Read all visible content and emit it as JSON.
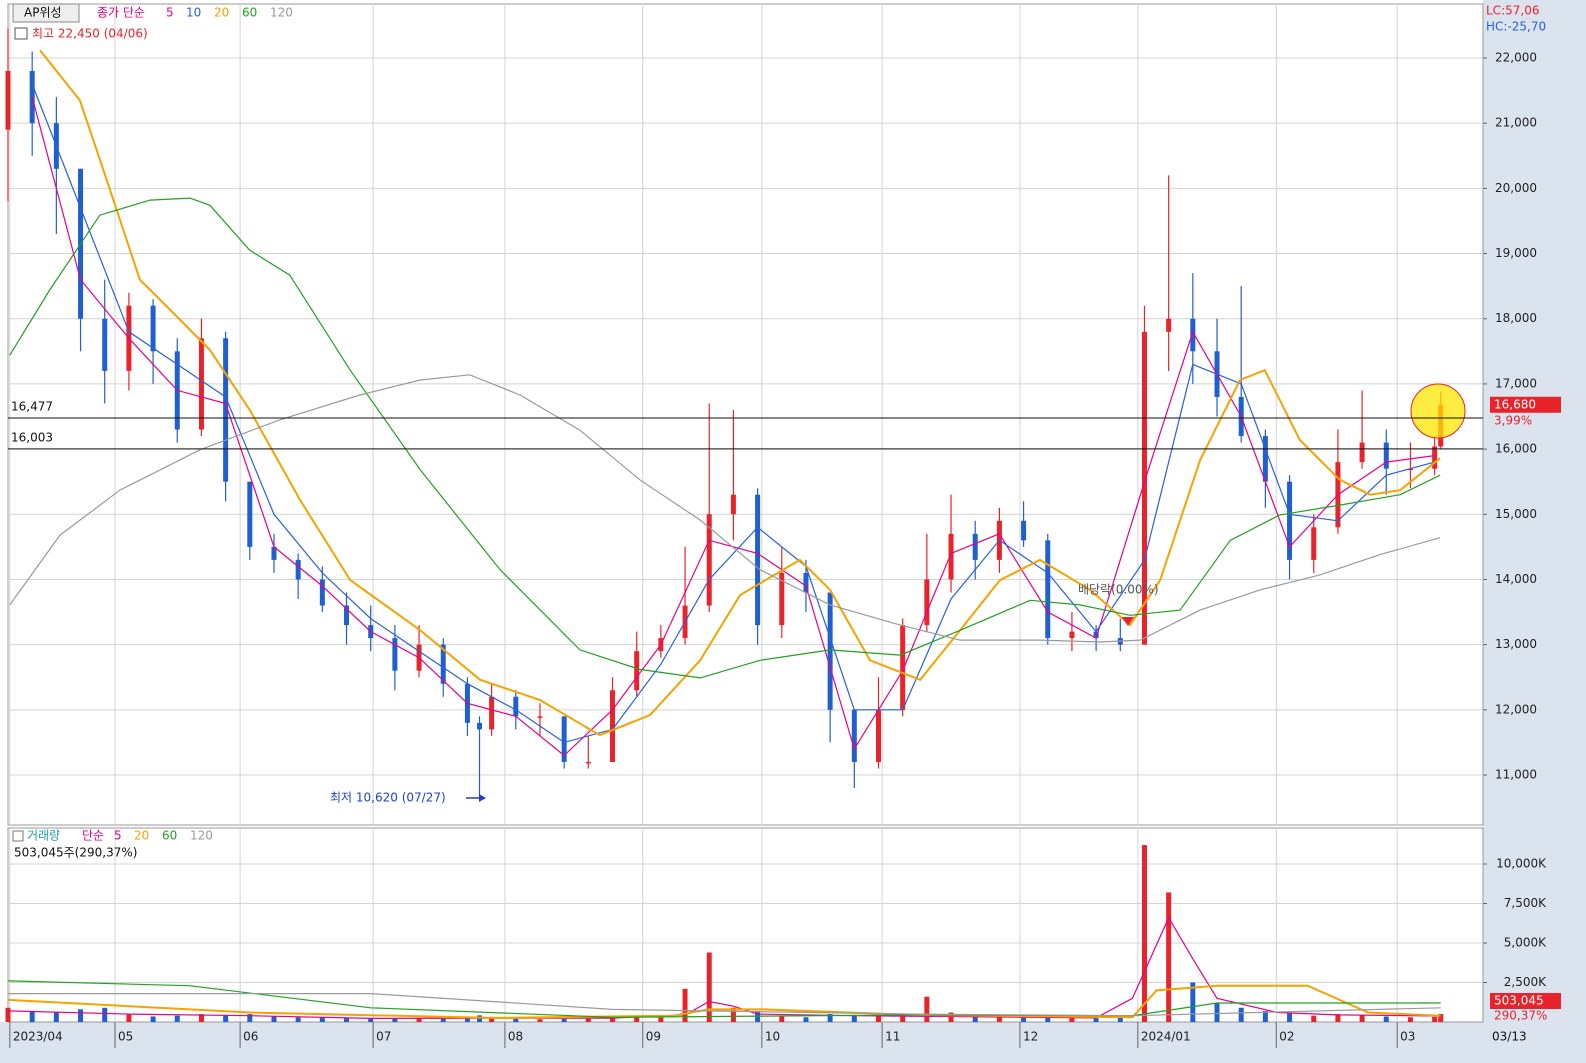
{
  "header": {
    "symbol": "AP위성",
    "lc": "LC:57,06",
    "hc": "HC:-25,70",
    "high_note": "최고 22,450 (04/06)",
    "low_note": "최저 10,620 (07/27)",
    "dividend_note": "배당락(0.00%)",
    "last_date": "03/13",
    "volume_info": "503,045주(290,37%)"
  },
  "chart_data": [
    {
      "type": "candlestick",
      "legend_label": "종가 단순",
      "up_color": "#e8242a",
      "down_color": "#1f5fd0",
      "grid": true,
      "xlim": [
        0,
        244
      ],
      "ylim": [
        10233,
        22767
      ],
      "xticks": [
        {
          "value": 0.3,
          "label": "2023/04"
        },
        {
          "value": 17.7,
          "label": "05"
        },
        {
          "value": 38.4,
          "label": "06"
        },
        {
          "value": 60.4,
          "label": "07"
        },
        {
          "value": 82.2,
          "label": "08"
        },
        {
          "value": 105,
          "label": "09"
        },
        {
          "value": 124.7,
          "label": "10"
        },
        {
          "value": 144.6,
          "label": "11"
        },
        {
          "value": 167.4,
          "label": "12"
        },
        {
          "value": 186.9,
          "label": "2024/01"
        },
        {
          "value": 209.8,
          "label": "02"
        },
        {
          "value": 229.8,
          "label": "03"
        }
      ],
      "yticks": [
        {
          "value": 11000,
          "label": "11,000"
        },
        {
          "value": 12000,
          "label": "12,000"
        },
        {
          "value": 13000,
          "label": "13,000"
        },
        {
          "value": 14000,
          "label": "14,000"
        },
        {
          "value": 15000,
          "label": "15,000"
        },
        {
          "value": 16000,
          "label": "16,000"
        },
        {
          "value": 17000,
          "label": "17,000"
        },
        {
          "value": 18000,
          "label": "18,000"
        },
        {
          "value": 19000,
          "label": "19,000"
        },
        {
          "value": 20000,
          "label": "20,000"
        },
        {
          "value": 21000,
          "label": "21,000"
        },
        {
          "value": 22000,
          "label": "22,000"
        }
      ],
      "hlines": [
        {
          "value": 16477,
          "label": "16,477"
        },
        {
          "value": 16003,
          "label": "16,003"
        }
      ],
      "last_price": {
        "value": 16680,
        "label": "16,680"
      },
      "change_label": "3,99%",
      "x": [
        0,
        4,
        8,
        12,
        16,
        20,
        24,
        28,
        32,
        36,
        40,
        44,
        48,
        52,
        56,
        60,
        64,
        68,
        72,
        76,
        78,
        80,
        84,
        88,
        92,
        96,
        100,
        104,
        108,
        112,
        116,
        120,
        124,
        128,
        132,
        136,
        140,
        144,
        148,
        152,
        156,
        160,
        164,
        168,
        172,
        176,
        180,
        184,
        188,
        192,
        196,
        200,
        204,
        208,
        212,
        216,
        220,
        224,
        228,
        232,
        236,
        237
      ],
      "open": [
        20900,
        21800,
        21000,
        20300,
        18000,
        17200,
        18200,
        17500,
        16300,
        17700,
        15500,
        14500,
        14300,
        14000,
        13600,
        13300,
        13100,
        12600,
        13000,
        12400,
        11800,
        11700,
        12200,
        11900,
        11900,
        11200,
        11200,
        12300,
        12900,
        13100,
        13600,
        15000,
        15300,
        13300,
        14100,
        13800,
        12000,
        11200,
        12000,
        13300,
        14000,
        14700,
        14300,
        14900,
        14600,
        13100,
        13200,
        13100,
        13000,
        17800,
        18000,
        17500,
        16800,
        16200,
        15500,
        14300,
        14800,
        15800,
        16100,
        15700,
        15700,
        16040
      ],
      "high": [
        22450,
        22100,
        21400,
        20300,
        18600,
        18400,
        18300,
        17700,
        18000,
        17800,
        15500,
        14700,
        14400,
        14200,
        13800,
        13600,
        13300,
        13300,
        13100,
        12500,
        11900,
        12400,
        12300,
        12100,
        11900,
        11600,
        12500,
        13200,
        13300,
        14500,
        16700,
        16600,
        15400,
        14500,
        14300,
        13800,
        12000,
        12500,
        13400,
        14700,
        15300,
        14900,
        15100,
        15200,
        14700,
        13500,
        13300,
        13400,
        18200,
        20200,
        18700,
        18000,
        18500,
        16300,
        15600,
        15000,
        16300,
        16900,
        16300,
        16100,
        16200,
        16880
      ],
      "low": [
        19800,
        20500,
        19300,
        17500,
        16700,
        16900,
        17000,
        16100,
        16200,
        15200,
        14300,
        14100,
        13700,
        13500,
        13000,
        12900,
        12300,
        12500,
        12200,
        11600,
        10620,
        11600,
        11700,
        11600,
        11100,
        11100,
        11200,
        12200,
        12800,
        13000,
        13500,
        14600,
        13000,
        13100,
        13500,
        11500,
        10800,
        11100,
        11900,
        13200,
        13800,
        14000,
        14100,
        14500,
        13000,
        12900,
        12900,
        12900,
        13000,
        17200,
        17000,
        16500,
        16100,
        15100,
        14000,
        14100,
        14700,
        15700,
        15300,
        15400,
        15600,
        16000
      ],
      "close": [
        21800,
        21000,
        20300,
        18000,
        17200,
        18200,
        17500,
        16300,
        17700,
        15500,
        14500,
        14300,
        14000,
        13600,
        13300,
        13100,
        12600,
        13000,
        12400,
        11800,
        11700,
        12200,
        11900,
        11900,
        11200,
        11200,
        12300,
        12900,
        13100,
        13600,
        15000,
        15300,
        13300,
        14100,
        13800,
        12000,
        11200,
        12000,
        13300,
        14000,
        14700,
        14300,
        14900,
        14600,
        13100,
        13200,
        13100,
        13000,
        17800,
        18000,
        17500,
        16800,
        16200,
        15500,
        14300,
        14800,
        15800,
        16100,
        15700,
        15700,
        16040,
        16680
      ],
      "series": [
        {
          "name": "5",
          "color": "#e6008a",
          "x": [
            4,
            12,
            20,
            28,
            36,
            44,
            52,
            60,
            68,
            76,
            84,
            92,
            100,
            108,
            116,
            124,
            132,
            140,
            148,
            156,
            164,
            172,
            180,
            188,
            196,
            204,
            212,
            220,
            228,
            236
          ],
          "values": [
            21400,
            18600,
            17700,
            16900,
            16700,
            14500,
            13900,
            13200,
            12800,
            12100,
            11900,
            11300,
            12000,
            13000,
            14600,
            14400,
            13900,
            11400,
            12600,
            14400,
            14700,
            13500,
            13100,
            15500,
            17800,
            16500,
            14500,
            15300,
            15800,
            15900
          ]
        },
        {
          "name": "10",
          "color": "#2a5fe0",
          "x": [
            4,
            12,
            20,
            28,
            36,
            44,
            52,
            60,
            68,
            76,
            84,
            92,
            100,
            108,
            116,
            124,
            132,
            140,
            148,
            156,
            164,
            172,
            180,
            188,
            196,
            204,
            212,
            220,
            228,
            236
          ],
          "values": [
            21600,
            19700,
            17800,
            17300,
            16800,
            15000,
            14100,
            13400,
            12900,
            12400,
            12000,
            11500,
            11700,
            12700,
            14000,
            14800,
            14200,
            12000,
            12000,
            13700,
            14600,
            14100,
            13200,
            14300,
            17300,
            17000,
            15000,
            14900,
            15600,
            15800
          ]
        },
        {
          "name": "20",
          "color": "#f5a300",
          "x": [
            5.3,
            11.9,
            16.9,
            21.8,
            28.5,
            33.4,
            40,
            48.3,
            56.6,
            68.2,
            78.1,
            88,
            97.9,
            106.2,
            114.5,
            121.1,
            131,
            136,
            142.6,
            150.9,
            157.5,
            164.1,
            170.7,
            179,
            185.6,
            190.6,
            197.2,
            203.8,
            207.9,
            213.7,
            220.3,
            225.3,
            230.3,
            236.9
          ],
          "values": [
            22120,
            21350,
            19970,
            18600,
            17980,
            17520,
            16600,
            15220,
            13990,
            13220,
            12460,
            12150,
            11610,
            11920,
            12760,
            13760,
            14300,
            13840,
            12760,
            12460,
            13220,
            13990,
            14300,
            13840,
            13300,
            13990,
            15830,
            17060,
            17210,
            16140,
            15530,
            15300,
            15370,
            15860
          ]
        },
        {
          "name": "60",
          "color": "#22a022",
          "x": [
            0.3,
            6.9,
            15.2,
            23.5,
            30.1,
            33.4,
            40,
            46.6,
            56.6,
            68.2,
            81.4,
            94.6,
            104.5,
            114.5,
            124.4,
            136,
            147.6,
            157.5,
            169.1,
            177.3,
            185.6,
            193.9,
            202.2,
            210.4,
            220.3,
            230.3,
            236.9
          ],
          "values": [
            17440,
            18440,
            19590,
            19820,
            19850,
            19740,
            19050,
            18670,
            17210,
            15680,
            14150,
            12920,
            12620,
            12490,
            12760,
            12920,
            12840,
            13220,
            13680,
            13610,
            13450,
            13530,
            14600,
            14990,
            15140,
            15300,
            15600
          ]
        },
        {
          "name": "120",
          "color": "#9a9a9a",
          "x": [
            0.3,
            8.6,
            18.5,
            31.8,
            45,
            58.2,
            68.2,
            76.4,
            84.7,
            94.6,
            104.5,
            114.5,
            124.4,
            136,
            147.6,
            157.5,
            170.7,
            180.6,
            187.3,
            197.2,
            207.1,
            217,
            226.9,
            236.9
          ],
          "values": [
            13610,
            14680,
            15370,
            15990,
            16450,
            16830,
            17060,
            17140,
            16830,
            16290,
            15530,
            14910,
            14150,
            13610,
            13300,
            13070,
            13070,
            13040,
            13070,
            13530,
            13840,
            14070,
            14380,
            14640
          ]
        }
      ]
    },
    {
      "type": "bar",
      "legend_label": "거래량",
      "method": "단순",
      "xlim": [
        0,
        244
      ],
      "ylim": [
        0,
        12280
      ],
      "grid": true,
      "yticks": [
        {
          "value": 2500,
          "label": "2,500K"
        },
        {
          "value": 5000,
          "label": "5,000K"
        },
        {
          "value": 7500,
          "label": "7,500K"
        },
        {
          "value": 10000,
          "label": "10,000K"
        }
      ],
      "last_volume": {
        "value": 503.045,
        "label": "503,045"
      },
      "last_ratio": "290,37%",
      "x": [
        0,
        4,
        8,
        12,
        16,
        20,
        24,
        28,
        32,
        36,
        40,
        44,
        48,
        52,
        56,
        60,
        64,
        68,
        72,
        76,
        78,
        80,
        84,
        88,
        92,
        96,
        100,
        104,
        108,
        112,
        116,
        120,
        124,
        128,
        132,
        136,
        140,
        144,
        148,
        152,
        156,
        160,
        164,
        168,
        172,
        176,
        180,
        184,
        188,
        192,
        196,
        200,
        204,
        208,
        212,
        216,
        220,
        224,
        228,
        232,
        236,
        237
      ],
      "values": [
        900,
        700,
        600,
        800,
        900,
        500,
        350,
        400,
        500,
        450,
        500,
        350,
        300,
        280,
        250,
        230,
        220,
        210,
        200,
        260,
        420,
        250,
        200,
        180,
        200,
        210,
        250,
        300,
        280,
        2100,
        4400,
        900,
        700,
        400,
        300,
        500,
        450,
        350,
        500,
        1600,
        600,
        350,
        300,
        280,
        300,
        260,
        240,
        300,
        11200,
        8200,
        2500,
        1200,
        900,
        700,
        600,
        400,
        500,
        450,
        350,
        300,
        330,
        503.045
      ],
      "series": [
        {
          "name": "5",
          "color": "#e6008a",
          "x": [
            0,
            20,
            40,
            60,
            80,
            100,
            112,
            116,
            120,
            124,
            140,
            160,
            180,
            186,
            192,
            196,
            200,
            210,
            220,
            237
          ],
          "values": [
            700,
            500,
            400,
            230,
            250,
            250,
            450,
            1300,
            1000,
            500,
            400,
            330,
            260,
            1500,
            6600,
            4000,
            1500,
            600,
            450,
            380
          ]
        },
        {
          "name": "20",
          "color": "#f5a300",
          "x": [
            0,
            40,
            80,
            110,
            116,
            125,
            150,
            186,
            190,
            200,
            215,
            225,
            237
          ],
          "values": [
            1400,
            600,
            260,
            400,
            800,
            800,
            450,
            300,
            2000,
            2300,
            2300,
            600,
            400
          ]
        },
        {
          "name": "60",
          "color": "#22a022",
          "x": [
            0,
            30,
            60,
            100,
            150,
            186,
            200,
            237
          ],
          "values": [
            2600,
            2300,
            900,
            300,
            450,
            400,
            1200,
            1200
          ]
        },
        {
          "name": "120",
          "color": "#9a9a9a",
          "x": [
            0,
            60,
            100,
            150,
            186,
            237
          ],
          "values": [
            1800,
            1800,
            800,
            500,
            400,
            900
          ]
        }
      ]
    }
  ]
}
